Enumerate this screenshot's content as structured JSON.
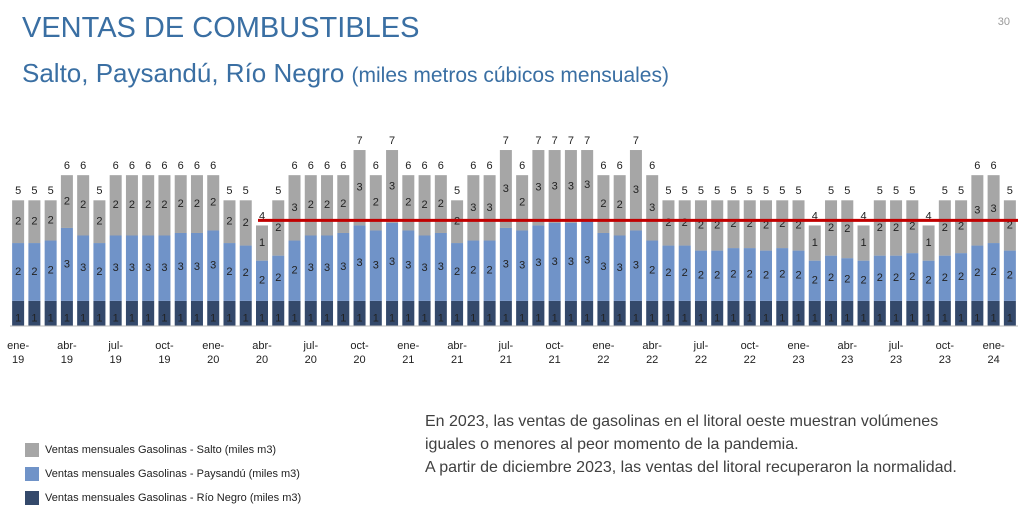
{
  "page_number": "30",
  "chart_data": {
    "type": "stacked_bar",
    "title": "VENTAS DE COMBUSTIBLES",
    "subtitle": "Salto, Paysandú, Río Negro",
    "subtitle_unit": "(miles metros cúbicos mensuales)",
    "categories": [
      "ene-19",
      null,
      null,
      "abr-19",
      null,
      null,
      "jul-19",
      null,
      null,
      "oct-19",
      null,
      null,
      "ene-20",
      null,
      null,
      "abr-20",
      null,
      null,
      "jul-20",
      null,
      null,
      "oct-20",
      null,
      null,
      "ene-21",
      null,
      null,
      "abr-21",
      null,
      null,
      "jul-21",
      null,
      null,
      "oct-21",
      null,
      null,
      "ene-22",
      null,
      null,
      "abr-22",
      null,
      null,
      "jul-22",
      null,
      null,
      "oct-22",
      null,
      null,
      "ene-23",
      null,
      null,
      "abr-23",
      null,
      null,
      "jul-23",
      null,
      null,
      "oct-23",
      null,
      null,
      "ene-24",
      null
    ],
    "ylim": [
      0,
      7.2
    ],
    "series": [
      {
        "name": "Ventas  mensuales Gasolinas - Río Negro (miles m3)",
        "color": "#34496b",
        "values": [
          1,
          1,
          1,
          1,
          1,
          1,
          1,
          1,
          1,
          1,
          1,
          1,
          1,
          1,
          1,
          1,
          1,
          1,
          1,
          1,
          1,
          1,
          1,
          1,
          1,
          1,
          1,
          1,
          1,
          1,
          1,
          1,
          1,
          1,
          1,
          1,
          1,
          1,
          1,
          1,
          1,
          1,
          1,
          1,
          1,
          1,
          1,
          1,
          1,
          1,
          1,
          1,
          1,
          1,
          1,
          1,
          1,
          1,
          1,
          1,
          1,
          1
        ]
      },
      {
        "name": "Ventas  mensuales Gasolinas - Paysandú (miles m3)",
        "color": "#7093c8",
        "values": [
          2.3,
          2.3,
          2.4,
          2.9,
          2.6,
          2.3,
          2.6,
          2.6,
          2.6,
          2.6,
          2.7,
          2.7,
          2.8,
          2.3,
          2.2,
          1.6,
          1.8,
          2.4,
          2.6,
          2.6,
          2.7,
          3.0,
          2.8,
          3.1,
          2.8,
          2.6,
          2.7,
          2.3,
          2.4,
          2.4,
          2.9,
          2.8,
          3.0,
          3.1,
          3.1,
          3.2,
          2.7,
          2.6,
          2.8,
          2.4,
          2.2,
          2.2,
          2.0,
          2.0,
          2.1,
          2.1,
          2.0,
          2.1,
          2.0,
          1.6,
          1.8,
          1.7,
          1.6,
          1.8,
          1.8,
          1.9,
          1.6,
          1.8,
          1.9,
          2.2,
          2.3,
          2.0
        ],
        "value_labels": [
          "2",
          "2",
          "2",
          "3",
          "3",
          "2",
          "3",
          "3",
          "3",
          "3",
          "3",
          "3",
          "3",
          "2",
          "2",
          "2",
          "2",
          "2",
          "3",
          "3",
          "3",
          "3",
          "3",
          "3",
          "3",
          "3",
          "3",
          "2",
          "2",
          "2",
          "3",
          "3",
          "3",
          "3",
          "3",
          "3",
          "3",
          "3",
          "3",
          "2",
          "2",
          "2",
          "2",
          "2",
          "2",
          "2",
          "2",
          "2",
          "2",
          "2",
          "2",
          "2",
          "2",
          "2",
          "2",
          "2",
          "2",
          "2",
          "2",
          "2",
          "2",
          "2"
        ]
      },
      {
        "name": "Ventas  mensuales Gasolinas - Salto (miles m3)",
        "color": "#a6a6a6",
        "values": [
          1.7,
          1.7,
          1.6,
          2.1,
          2.4,
          1.7,
          2.4,
          2.4,
          2.4,
          2.4,
          2.3,
          2.3,
          2.2,
          1.7,
          1.8,
          1.4,
          2.2,
          2.6,
          2.4,
          2.4,
          2.3,
          3.0,
          2.2,
          2.9,
          2.2,
          2.4,
          2.3,
          1.7,
          2.6,
          2.6,
          3.1,
          2.2,
          3.0,
          2.9,
          2.9,
          2.8,
          2.3,
          2.4,
          3.2,
          2.6,
          1.8,
          1.8,
          2.0,
          2.0,
          1.9,
          1.9,
          2.0,
          1.9,
          2.0,
          1.4,
          2.2,
          2.3,
          1.4,
          2.2,
          2.2,
          2.1,
          1.4,
          2.2,
          2.1,
          2.8,
          2.7,
          2.0
        ],
        "value_labels": [
          "2",
          "2",
          "2",
          "2",
          "2",
          "2",
          "2",
          "2",
          "2",
          "2",
          "2",
          "2",
          "2",
          "2",
          "2",
          "1",
          "2",
          "3",
          "2",
          "2",
          "2",
          "3",
          "2",
          "3",
          "2",
          "2",
          "2",
          "2",
          "3",
          "3",
          "3",
          "2",
          "3",
          "3",
          "3",
          "3",
          "2",
          "2",
          "3",
          "3",
          "2",
          "2",
          "2",
          "2",
          "2",
          "2",
          "2",
          "2",
          "2",
          "1",
          "2",
          "2",
          "1",
          "2",
          "2",
          "2",
          "1",
          "2",
          "2",
          "3",
          "3",
          "2"
        ]
      }
    ],
    "totals": [
      5,
      5,
      5,
      6,
      6,
      5,
      6,
      6,
      6,
      6,
      6,
      6,
      6,
      5,
      5,
      4,
      5,
      6,
      6,
      6,
      6,
      7,
      6,
      7,
      6,
      6,
      6,
      5,
      6,
      6,
      7,
      6,
      7,
      7,
      7,
      7,
      6,
      6,
      7,
      6,
      5,
      5,
      5,
      5,
      5,
      5,
      5,
      5,
      5,
      4,
      5,
      5,
      4,
      5,
      5,
      5,
      4,
      5,
      5,
      6,
      6,
      5
    ],
    "reference_line": {
      "value": 4.2,
      "color": "#c00000"
    },
    "annotation": [
      "En 2023, las ventas de gasolinas en el litoral oeste muestran volúmenes iguales o menores al peor momento de la pandemia.",
      "A partir de diciembre 2023,  las ventas del litoral recuperaron la normalidad."
    ]
  }
}
